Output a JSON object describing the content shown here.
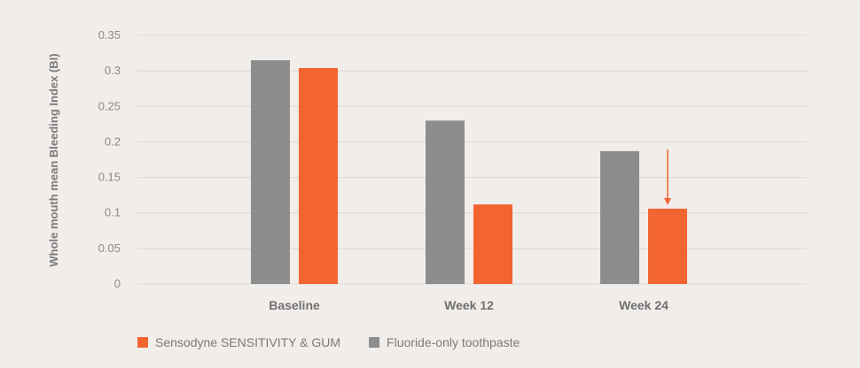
{
  "chart_data": {
    "type": "bar",
    "categories": [
      "Baseline",
      "Week 12",
      "Week 24"
    ],
    "series": [
      {
        "name": "Fluoride-only toothpaste",
        "color": "#8c8e8e",
        "values": [
          0.315,
          0.23,
          0.187
        ]
      },
      {
        "name": "Sensodyne SENSITIVITY & GUM",
        "color": "#f26430",
        "values": [
          0.304,
          0.112,
          0.106
        ]
      }
    ],
    "title": "",
    "xlabel": "",
    "ylabel": "Whole mouth mean Bleeding Index (BI)",
    "ylim": [
      0,
      0.35
    ],
    "yticks": [
      0,
      0.05,
      0.1,
      0.15,
      0.2,
      0.25,
      0.3,
      0.35
    ],
    "ytick_labels": [
      "0",
      "0.05",
      "0.1",
      "0.15",
      "0.2",
      "0.25",
      "0.3",
      "0.35"
    ],
    "grid": true,
    "legend_position": "bottom-left",
    "legend_order": [
      "Sensodyne SENSITIVITY & GUM",
      "Fluoride-only toothpaste"
    ],
    "annotations": [
      {
        "type": "arrow",
        "category": "Week 24",
        "series": "Sensodyne SENSITIVITY & GUM",
        "color": "#f26430",
        "from_value": 0.187,
        "to_value": 0.106
      }
    ],
    "colors": {
      "background": "#f1edeb",
      "grid": "#d9d6d4",
      "axis_text": "#8a8a8a"
    }
  }
}
